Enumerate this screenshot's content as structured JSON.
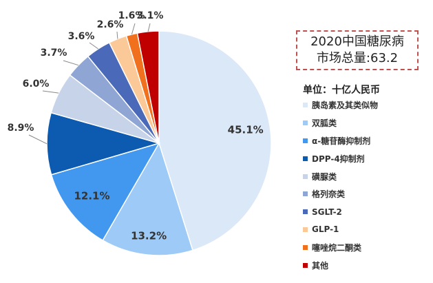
{
  "chart_data": {
    "type": "pie",
    "title": "",
    "unit": "单位：十亿人民币",
    "total_label_line1": "2020中国糖尿病",
    "total_label_line2": "市场总量:63.2",
    "legend_placement": "right",
    "slices": [
      {
        "name": "胰岛素及其类似物",
        "value": 45.1,
        "label": "45.1%",
        "color": "#dbe8f8",
        "label_inside": true
      },
      {
        "name": "双胍类",
        "value": 13.2,
        "label": "13.2%",
        "color": "#9dcaf6",
        "label_inside": true
      },
      {
        "name": "α-糖苷酶抑制剂",
        "value": 12.1,
        "label": "12.1%",
        "color": "#4298ef",
        "label_inside": true
      },
      {
        "name": "DPP-4抑制剂",
        "value": 8.9,
        "label": "8.9%",
        "color": "#0d5bb0",
        "label_inside": false
      },
      {
        "name": "磺脲类",
        "value": 6.0,
        "label": "6.0%",
        "color": "#c7d3e8",
        "label_inside": false
      },
      {
        "name": "格列奈类",
        "value": 3.7,
        "label": "3.7%",
        "color": "#8fa6d5",
        "label_inside": false
      },
      {
        "name": "SGLT-2",
        "value": 3.6,
        "label": "3.6%",
        "color": "#4a69b9",
        "label_inside": false
      },
      {
        "name": "GLP-1",
        "value": 2.6,
        "label": "2.6%",
        "color": "#fbc997",
        "label_inside": false
      },
      {
        "name": "噻唑烷二酮类",
        "value": 1.6,
        "label": "1.6%",
        "color": "#f0701d",
        "label_inside": false
      },
      {
        "name": "其他",
        "value": 3.1,
        "label": "3.1%",
        "color": "#c00000",
        "label_inside": false
      }
    ]
  }
}
